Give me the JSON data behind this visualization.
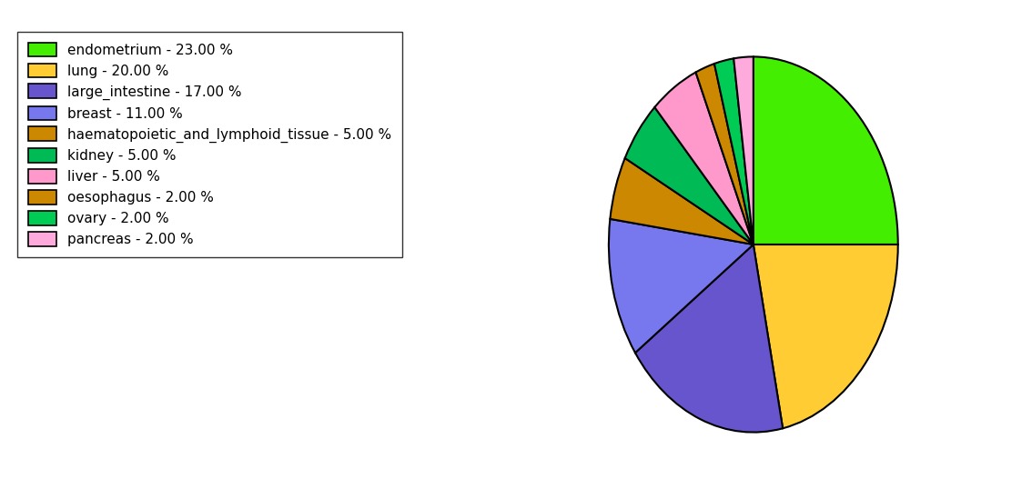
{
  "labels": [
    "endometrium - 23.00 %",
    "lung - 20.00 %",
    "large_intestine - 17.00 %",
    "breast - 11.00 %",
    "haematopoietic_and_lymphoid_tissue - 5.00 %",
    "kidney - 5.00 %",
    "liver - 5.00 %",
    "oesophagus - 2.00 %",
    "ovary - 2.00 %",
    "pancreas - 2.00 %"
  ],
  "sizes": [
    23,
    20,
    17,
    11,
    5,
    5,
    5,
    2,
    2,
    2
  ],
  "colors": [
    "#44ee00",
    "#ffcc33",
    "#6655cc",
    "#7777ee",
    "#cc8800",
    "#00bb55",
    "#ff99cc",
    "#cc8800",
    "#00cc55",
    "#ffaadd"
  ],
  "startangle": 90,
  "figsize": [
    11.34,
    5.38
  ],
  "dpi": 100
}
